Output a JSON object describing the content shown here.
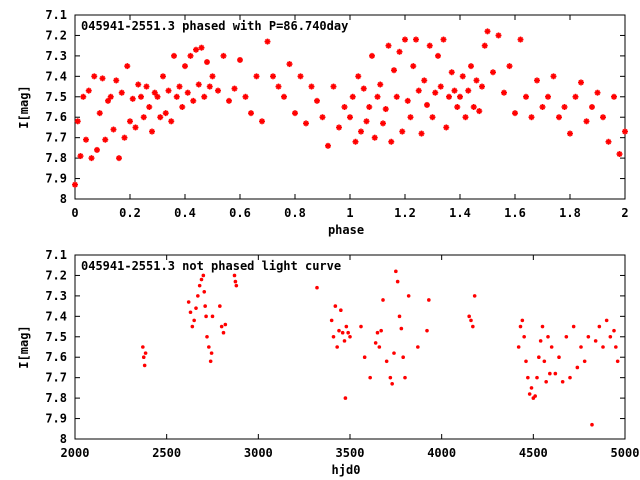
{
  "chart_data": [
    {
      "type": "scatter",
      "title": "045941-2551.3 phased with P=86.740day",
      "xlabel": "phase",
      "ylabel": "I[mag]",
      "xlim": [
        0,
        2
      ],
      "ylim": [
        7.1,
        8.0
      ],
      "y_inverted": true,
      "x_ticks": [
        "0",
        "0.2",
        "0.4",
        "0.6",
        "0.8",
        "1",
        "1.2",
        "1.4",
        "1.6",
        "1.8",
        "2"
      ],
      "y_ticks": [
        "7.1",
        "7.2",
        "7.3",
        "7.4",
        "7.5",
        "7.6",
        "7.7",
        "7.8",
        "7.9",
        "8"
      ],
      "grid": false,
      "marker_color": "#ff0000",
      "series": [
        {
          "x": [
            0.0,
            0.01,
            0.02,
            0.03,
            0.04,
            0.05,
            0.06,
            0.07,
            0.08,
            0.09,
            0.1,
            0.11,
            0.12,
            0.13,
            0.14,
            0.15,
            0.16,
            0.17,
            0.18,
            0.19,
            0.2,
            0.21,
            0.22,
            0.23,
            0.24,
            0.25,
            0.26,
            0.27,
            0.28,
            0.29,
            0.3,
            0.31,
            0.32,
            0.33,
            0.34,
            0.35,
            0.36,
            0.37,
            0.38,
            0.39,
            0.4,
            0.41,
            0.42,
            0.43,
            0.44,
            0.45,
            0.46,
            0.47,
            0.48,
            0.49,
            0.5,
            0.52,
            0.54,
            0.56,
            0.58,
            0.6,
            0.62,
            0.64,
            0.66,
            0.68,
            0.7,
            0.72,
            0.74,
            0.76,
            0.78,
            0.8,
            0.82,
            0.84,
            0.86,
            0.88,
            0.9,
            0.92,
            0.94,
            0.96,
            0.98,
            1.0,
            1.01,
            1.02,
            1.03,
            1.04,
            1.05,
            1.06,
            1.07,
            1.08,
            1.09,
            1.1,
            1.11,
            1.12,
            1.13,
            1.14,
            1.15,
            1.16,
            1.17,
            1.18,
            1.19,
            1.2,
            1.21,
            1.22,
            1.23,
            1.24,
            1.25,
            1.26,
            1.27,
            1.28,
            1.29,
            1.3,
            1.31,
            1.32,
            1.33,
            1.34,
            1.35,
            1.36,
            1.37,
            1.38,
            1.39,
            1.4,
            1.41,
            1.42,
            1.43,
            1.44,
            1.45,
            1.46,
            1.47,
            1.48,
            1.49,
            1.5,
            1.52,
            1.54,
            1.56,
            1.58,
            1.6,
            1.62,
            1.64,
            1.66,
            1.68,
            1.7,
            1.72,
            1.74,
            1.76,
            1.78,
            1.8,
            1.82,
            1.84,
            1.86,
            1.88,
            1.9,
            1.92,
            1.94,
            1.96,
            1.98,
            2.0
          ],
          "y": [
            7.93,
            7.62,
            7.79,
            7.5,
            7.71,
            7.47,
            7.8,
            7.4,
            7.76,
            7.58,
            7.41,
            7.71,
            7.52,
            7.5,
            7.66,
            7.42,
            7.8,
            7.48,
            7.7,
            7.35,
            7.62,
            7.51,
            7.65,
            7.44,
            7.5,
            7.6,
            7.45,
            7.55,
            7.67,
            7.48,
            7.5,
            7.6,
            7.4,
            7.58,
            7.47,
            7.62,
            7.3,
            7.5,
            7.45,
            7.55,
            7.35,
            7.48,
            7.3,
            7.52,
            7.27,
            7.44,
            7.26,
            7.5,
            7.33,
            7.45,
            7.4,
            7.47,
            7.3,
            7.52,
            7.46,
            7.32,
            7.5,
            7.58,
            7.4,
            7.62,
            7.23,
            7.4,
            7.45,
            7.5,
            7.34,
            7.58,
            7.4,
            7.63,
            7.45,
            7.52,
            7.6,
            7.74,
            7.45,
            7.65,
            7.55,
            7.6,
            7.5,
            7.72,
            7.4,
            7.67,
            7.46,
            7.62,
            7.55,
            7.3,
            7.7,
            7.5,
            7.44,
            7.63,
            7.56,
            7.25,
            7.72,
            7.37,
            7.5,
            7.28,
            7.67,
            7.22,
            7.52,
            7.6,
            7.35,
            7.22,
            7.47,
            7.68,
            7.42,
            7.54,
            7.25,
            7.6,
            7.48,
            7.3,
            7.45,
            7.22,
            7.65,
            7.5,
            7.38,
            7.47,
            7.55,
            7.5,
            7.4,
            7.6,
            7.47,
            7.35,
            7.55,
            7.42,
            7.57,
            7.45,
            7.25,
            7.18,
            7.38,
            7.2,
            7.48,
            7.35,
            7.58,
            7.22,
            7.5,
            7.6,
            7.42,
            7.55,
            7.5,
            7.4,
            7.6,
            7.55,
            7.68,
            7.5,
            7.43,
            7.62,
            7.55,
            7.48,
            7.6,
            7.72,
            7.5,
            7.78,
            7.67
          ],
          "name": ""
        }
      ]
    },
    {
      "type": "scatter",
      "title": "045941-2551.3 not phased light curve",
      "xlabel": "hjd0",
      "ylabel": "I[mag]",
      "xlim": [
        2000,
        5000
      ],
      "ylim": [
        7.1,
        8.0
      ],
      "y_inverted": true,
      "x_ticks": [
        "2000",
        "2500",
        "3000",
        "3500",
        "4000",
        "4500",
        "5000"
      ],
      "y_ticks": [
        "7.1",
        "7.2",
        "7.3",
        "7.4",
        "7.5",
        "7.6",
        "7.7",
        "7.8",
        "7.9",
        "8"
      ],
      "grid": false,
      "marker_color": "#ff0000",
      "series": [
        {
          "x": [
            2370,
            2375,
            2380,
            2385,
            2620,
            2630,
            2640,
            2650,
            2660,
            2670,
            2680,
            2690,
            2700,
            2705,
            2710,
            2715,
            2720,
            2730,
            2740,
            2745,
            2750,
            2790,
            2800,
            2810,
            2820,
            2870,
            2875,
            2880,
            3320,
            3400,
            3410,
            3420,
            3430,
            3440,
            3450,
            3460,
            3470,
            3475,
            3480,
            3490,
            3500,
            3560,
            3580,
            3610,
            3640,
            3650,
            3660,
            3670,
            3680,
            3700,
            3720,
            3730,
            3740,
            3750,
            3760,
            3770,
            3780,
            3790,
            3800,
            3820,
            3870,
            3920,
            3930,
            4150,
            4160,
            4170,
            4180,
            4420,
            4430,
            4440,
            4450,
            4460,
            4470,
            4480,
            4490,
            4500,
            4510,
            4520,
            4530,
            4540,
            4550,
            4560,
            4570,
            4580,
            4590,
            4600,
            4620,
            4640,
            4660,
            4680,
            4700,
            4720,
            4740,
            4760,
            4780,
            4800,
            4820,
            4840,
            4860,
            4880,
            4900,
            4920,
            4940,
            4950,
            4960
          ],
          "y": [
            7.55,
            7.6,
            7.64,
            7.58,
            7.33,
            7.38,
            7.45,
            7.42,
            7.36,
            7.3,
            7.25,
            7.22,
            7.2,
            7.28,
            7.35,
            7.4,
            7.5,
            7.55,
            7.62,
            7.58,
            7.4,
            7.35,
            7.45,
            7.48,
            7.44,
            7.2,
            7.23,
            7.25,
            7.26,
            7.42,
            7.5,
            7.35,
            7.55,
            7.47,
            7.37,
            7.48,
            7.52,
            7.8,
            7.45,
            7.48,
            7.5,
            7.45,
            7.6,
            7.7,
            7.53,
            7.48,
            7.55,
            7.47,
            7.32,
            7.62,
            7.7,
            7.73,
            7.58,
            7.18,
            7.23,
            7.4,
            7.46,
            7.6,
            7.7,
            7.3,
            7.55,
            7.47,
            7.32,
            7.4,
            7.42,
            7.45,
            7.3,
            7.55,
            7.45,
            7.42,
            7.5,
            7.62,
            7.7,
            7.78,
            7.75,
            7.8,
            7.79,
            7.7,
            7.6,
            7.52,
            7.45,
            7.62,
            7.72,
            7.5,
            7.68,
            7.55,
            7.68,
            7.6,
            7.72,
            7.5,
            7.7,
            7.45,
            7.65,
            7.55,
            7.62,
            7.5,
            7.93,
            7.52,
            7.45,
            7.55,
            7.42,
            7.5,
            7.47,
            7.55,
            7.62
          ],
          "name": ""
        }
      ]
    }
  ]
}
